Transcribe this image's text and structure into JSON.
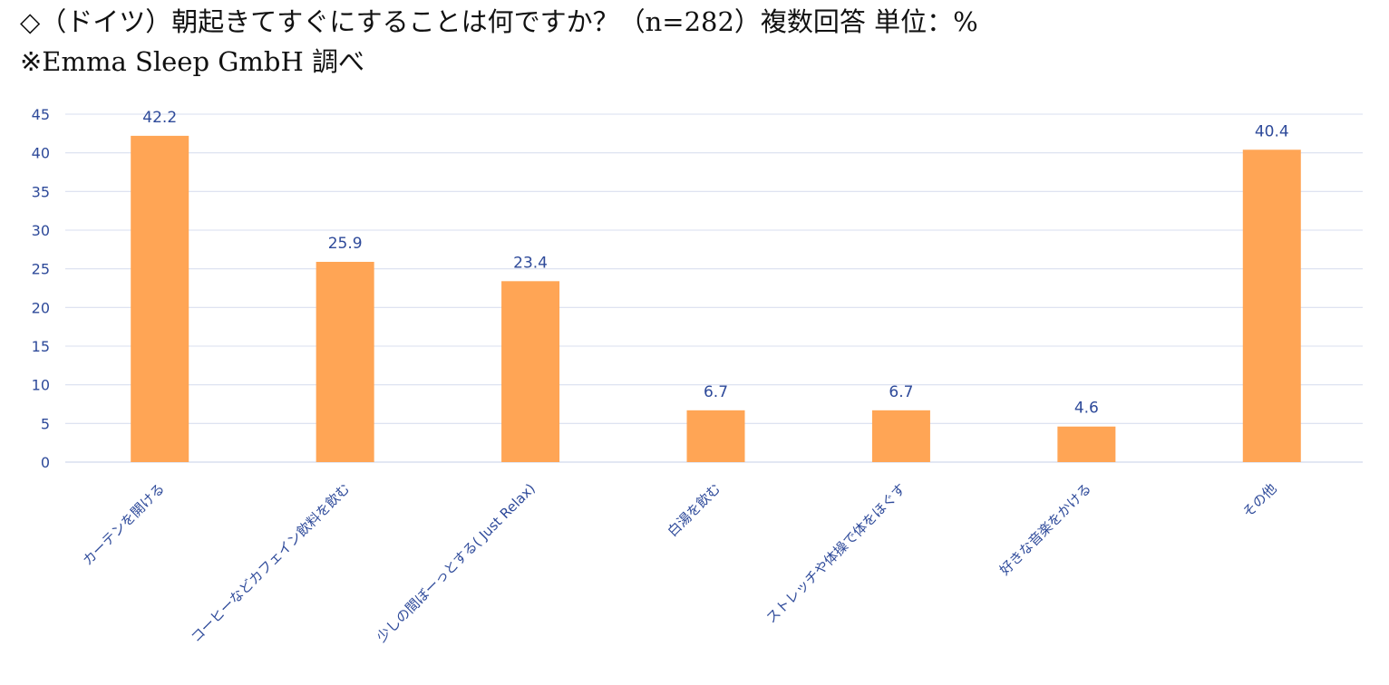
{
  "header": {
    "title": "◇（ドイツ）朝起きてすぐにすることは何ですか？（n=282）複数回答 単位：%",
    "source": "※Emma Sleep GmbH 調べ"
  },
  "colors": {
    "bar": "#FFA555",
    "axis_text": "#2E4A9A",
    "grid": "#D9DFEF"
  },
  "chart_data": {
    "type": "bar",
    "categories": [
      "カーテンを開ける",
      "コーヒーなどカフェイン飲料を飲む",
      "少しの間ぼーっとする( Just Relax)",
      "白湯を飲む",
      "ストレッチや体操で体をほぐす",
      "好きな音楽をかける",
      "その他"
    ],
    "values": [
      42.2,
      25.9,
      23.4,
      6.7,
      6.7,
      4.6,
      40.4
    ],
    "value_labels": [
      "42.2",
      "25.9",
      "23.4",
      "6.7",
      "6.7",
      "4.6",
      "40.4"
    ],
    "ylim": [
      0,
      45
    ],
    "yticks": [
      0,
      5,
      10,
      15,
      20,
      25,
      30,
      35,
      40,
      45
    ],
    "grid": true,
    "legend": "none"
  }
}
